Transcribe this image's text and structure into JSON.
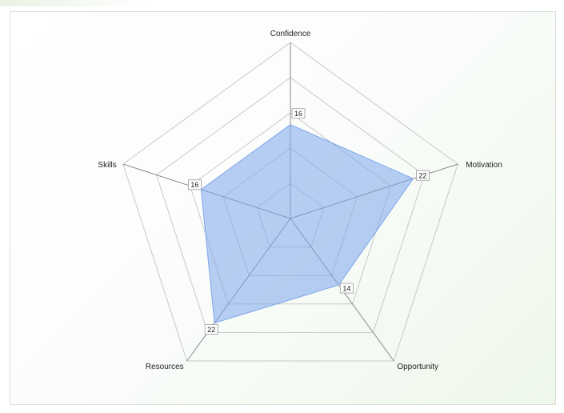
{
  "chart_data": {
    "type": "radar",
    "axes": [
      "Confidence",
      "Motivation",
      "Opportunity",
      "Resources",
      "Skills"
    ],
    "series": [
      {
        "values": [
          16,
          22,
          14,
          22,
          16
        ]
      }
    ],
    "value_labels": [
      "16",
      "22",
      "14",
      "22",
      "16"
    ],
    "range": [
      0,
      30
    ],
    "rings": 5,
    "fill_color": "#7ea6ec",
    "grid_color": "#c8c8c8",
    "spoke_color": "#8a8a8a"
  }
}
